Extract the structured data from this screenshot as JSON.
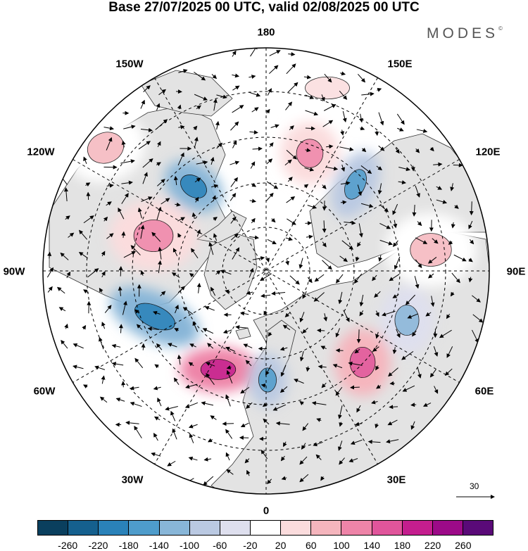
{
  "title": "Base 27/07/2025 00 UTC, valid 02/08/2025 00 UTC",
  "brand": "MODES",
  "brand_mark": "©",
  "longitude_labels": {
    "lon_180": "180",
    "lon_150E": "150E",
    "lon_120E": "120E",
    "lon_90E": "90E",
    "lon_60E": "60E",
    "lon_30E": "30E",
    "lon_0": "0",
    "lon_30W": "30W",
    "lon_60W": "60W",
    "lon_90W": "90W",
    "lon_120W": "120W",
    "lon_150W": "150W"
  },
  "reference_vector": {
    "label": "30"
  },
  "colorbar": {
    "colors": [
      "#0a3f5e",
      "#15608e",
      "#2a82b9",
      "#4e9ccb",
      "#88b6d8",
      "#bac9e2",
      "#dedfee",
      "#ffffff",
      "#fbdcdd",
      "#f5b5bd",
      "#ee84a8",
      "#e0559b",
      "#c41e8e",
      "#9c0a88",
      "#5a0a78"
    ],
    "labels": [
      "-260",
      "-220",
      "-180",
      "-140",
      "-100",
      "-60",
      "-20",
      "20",
      "60",
      "100",
      "140",
      "180",
      "220",
      "260"
    ]
  },
  "palette": {
    "land": "#e3e3e3",
    "ocean": "#ffffff",
    "coast": "#333333",
    "grid": "#000000",
    "arrow": "#000000"
  },
  "anomaly_fields": [
    {
      "name": "alaska-positive",
      "value": 100
    },
    {
      "name": "beaufort-negative",
      "value": -180
    },
    {
      "name": "canada-positive",
      "value": 140
    },
    {
      "name": "labrador-negative",
      "value": -180
    },
    {
      "name": "atlantic-positive",
      "value": 220
    },
    {
      "name": "nordic-negative",
      "value": -140
    },
    {
      "name": "urals-positive",
      "value": 180
    },
    {
      "name": "westsiberia-negative",
      "value": -120
    },
    {
      "name": "siberia-positive",
      "value": 100
    },
    {
      "name": "eastsiberia-negative",
      "value": -140
    },
    {
      "name": "chukchi-positive",
      "value": 140
    },
    {
      "name": "pacific-positive",
      "value": 60
    }
  ]
}
